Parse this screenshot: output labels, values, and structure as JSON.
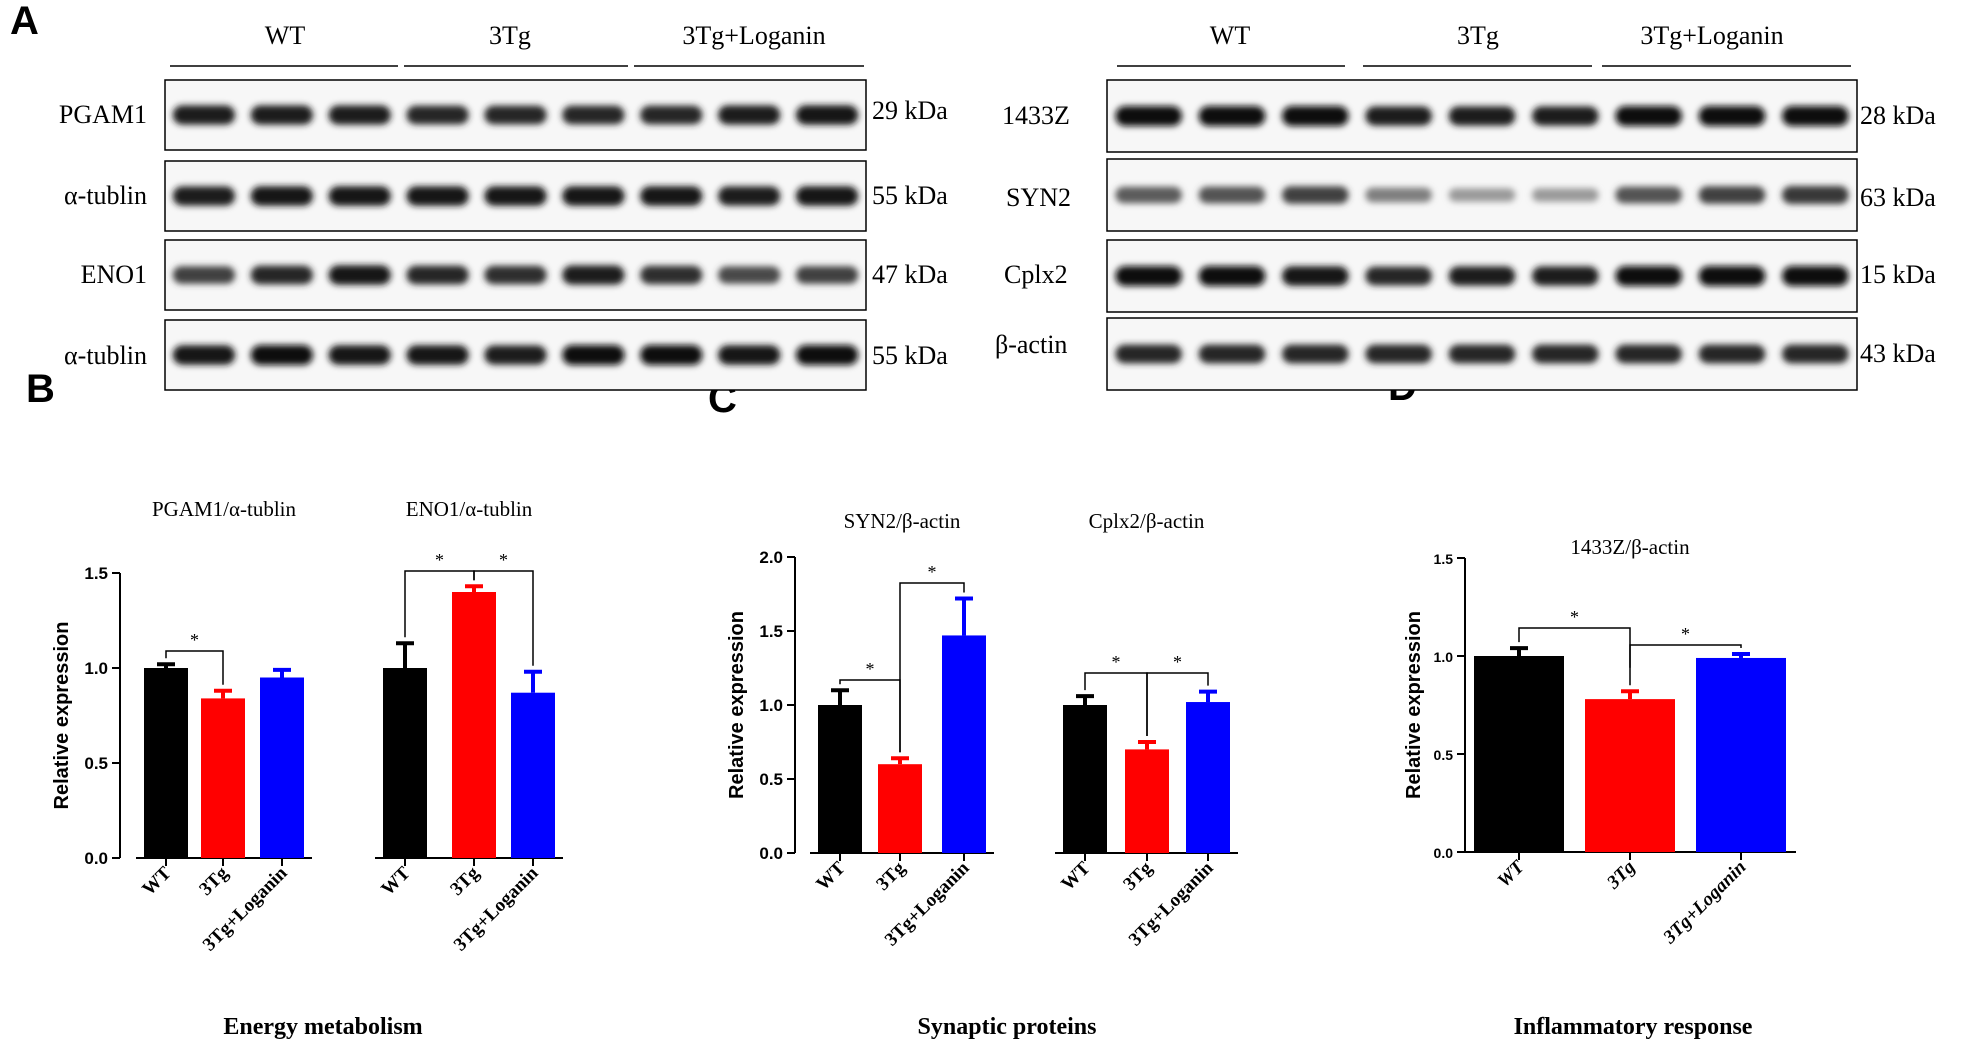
{
  "panel_letters": [
    "A",
    "B",
    "C",
    "D"
  ],
  "blots": {
    "left": {
      "groups": [
        "WT",
        "3Tg",
        "3Tg+Loganin"
      ],
      "rows": [
        {
          "label": "PGAM1",
          "size": "29 kDa",
          "intensity": [
            0.9,
            0.9,
            0.9,
            0.85,
            0.85,
            0.85,
            0.85,
            0.9,
            0.95
          ]
        },
        {
          "label": "α-tublin",
          "size": "55 kDa",
          "intensity": [
            0.9,
            0.95,
            0.95,
            0.95,
            0.95,
            0.95,
            0.95,
            0.9,
            0.95
          ]
        },
        {
          "label": "ENO1",
          "size": "47 kDa",
          "intensity": [
            0.7,
            0.85,
            0.95,
            0.85,
            0.8,
            0.9,
            0.8,
            0.65,
            0.7
          ]
        },
        {
          "label": "α-tublin",
          "size": "55 kDa",
          "intensity": [
            0.95,
            1.0,
            0.95,
            0.95,
            0.9,
            1.0,
            1.0,
            0.95,
            1.0
          ]
        }
      ]
    },
    "right": {
      "groups": [
        "WT",
        "3Tg",
        "3Tg+Loganin"
      ],
      "rows": [
        {
          "label": "1433Z",
          "size": "28 kDa",
          "intensity": [
            1.0,
            1.0,
            1.0,
            0.9,
            0.9,
            0.9,
            1.0,
            1.0,
            1.0
          ]
        },
        {
          "label": "SYN2",
          "size": "63 kDa",
          "intensity": [
            0.55,
            0.6,
            0.7,
            0.35,
            0.2,
            0.2,
            0.6,
            0.7,
            0.75
          ]
        },
        {
          "label": "Cplx2",
          "size": "15 kDa",
          "intensity": [
            1.0,
            1.0,
            0.95,
            0.85,
            0.9,
            0.9,
            1.0,
            1.0,
            1.0
          ]
        },
        {
          "label": "β-actin",
          "size": "43 kDa",
          "intensity": [
            0.85,
            0.85,
            0.85,
            0.85,
            0.85,
            0.85,
            0.85,
            0.85,
            0.85
          ]
        }
      ]
    }
  },
  "colors": {
    "WT": "#000000",
    "3Tg": "#ff0000",
    "3Tg+Loganin": "#0000ff"
  },
  "chart_data": [
    {
      "panel": "B",
      "type": "bar",
      "caption": "Energy metabolism",
      "ylabel": "Relative expression",
      "ylim": [
        0,
        1.5
      ],
      "yticks": [
        "0.0",
        "0.5",
        "1.0",
        "1.5"
      ],
      "categories": [
        "WT",
        "3Tg",
        "3Tg+Loganin"
      ],
      "subgroups": [
        {
          "title": "PGAM1/α-tublin",
          "values": [
            1.0,
            0.84,
            0.95
          ],
          "errors": [
            0.02,
            0.04,
            0.04
          ]
        },
        {
          "title": "ENO1/α-tublin",
          "values": [
            1.0,
            1.4,
            0.87
          ],
          "errors": [
            0.13,
            0.03,
            0.11
          ]
        }
      ],
      "significance": [
        "*",
        "*",
        "*"
      ]
    },
    {
      "panel": "C",
      "type": "bar",
      "caption": "Synaptic proteins",
      "ylabel": "Relative expression",
      "ylim": [
        0,
        2.0
      ],
      "yticks": [
        "0.0",
        "0.5",
        "1.0",
        "1.5",
        "2.0"
      ],
      "categories": [
        "WT",
        "3Tg",
        "3Tg+Loganin"
      ],
      "subgroups": [
        {
          "title": "SYN2/β-actin",
          "values": [
            1.0,
            0.6,
            1.47
          ],
          "errors": [
            0.1,
            0.04,
            0.25
          ]
        },
        {
          "title": "Cplx2/β-actin",
          "values": [
            1.0,
            0.7,
            1.02
          ],
          "errors": [
            0.06,
            0.05,
            0.07
          ]
        }
      ],
      "significance": [
        "*",
        "*",
        "*",
        "*"
      ]
    },
    {
      "panel": "D",
      "type": "bar",
      "caption": "Inflammatory response",
      "ylabel": "Relative expression",
      "ylim": [
        0,
        1.5
      ],
      "yticks": [
        "0.0",
        "0.5",
        "1.0",
        "1.5"
      ],
      "categories": [
        "WT",
        "3Tg",
        "3Tg+Loganin"
      ],
      "subgroups": [
        {
          "title": "1433Z/β-actin",
          "values": [
            1.0,
            0.78,
            0.99
          ],
          "errors": [
            0.04,
            0.04,
            0.02
          ]
        }
      ],
      "significance": [
        "*",
        "*"
      ]
    }
  ]
}
